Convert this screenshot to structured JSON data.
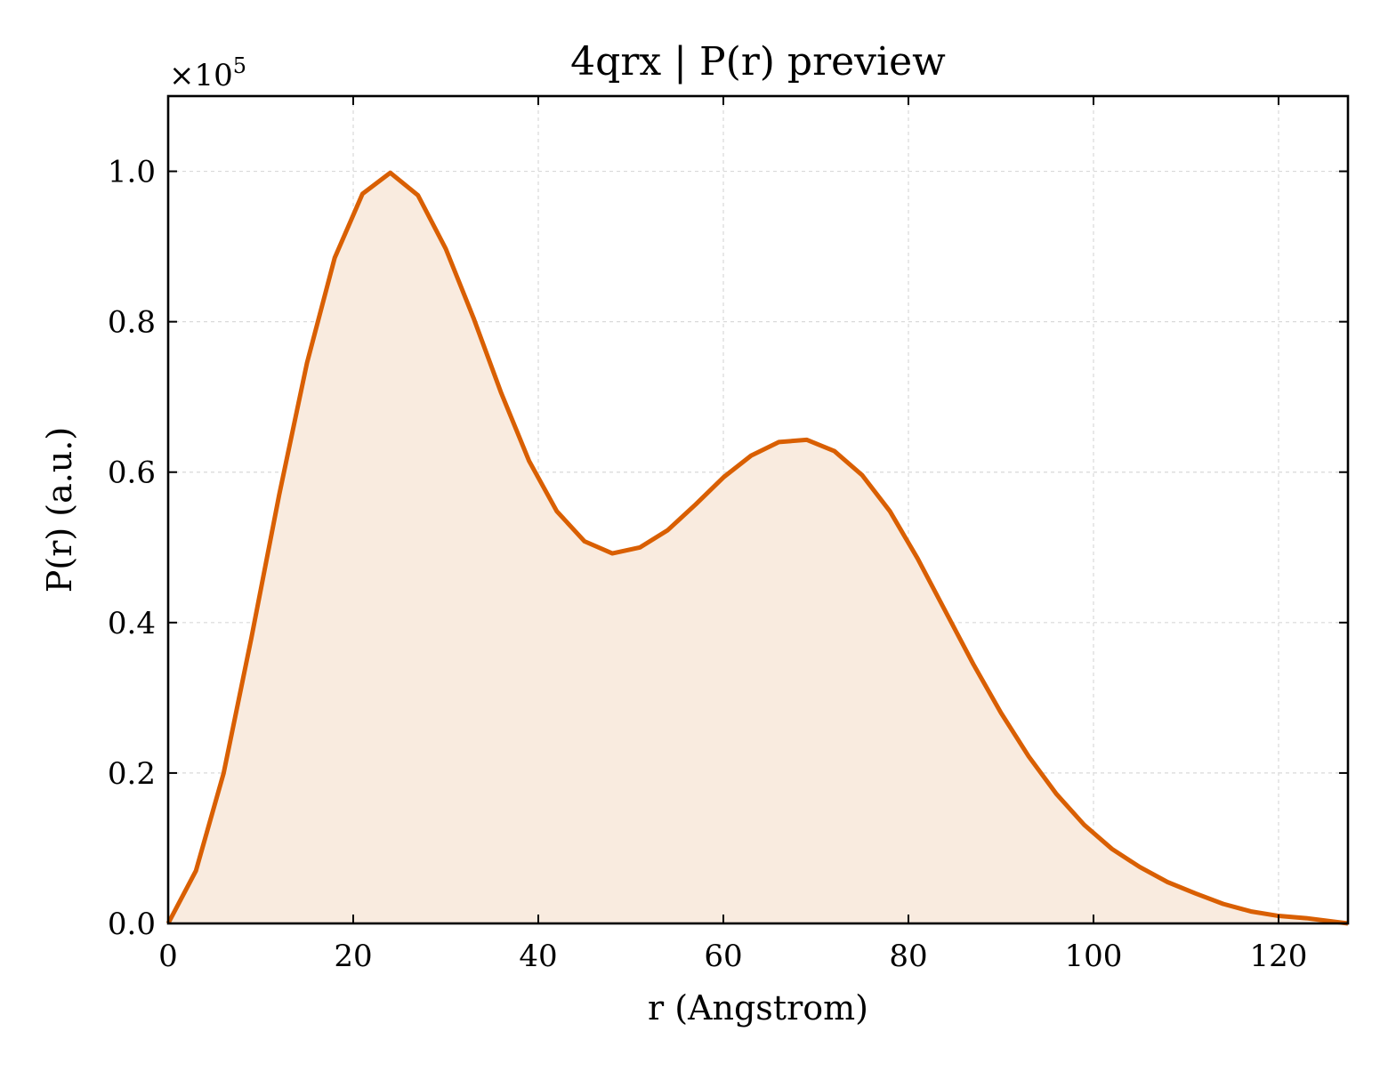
{
  "chart_data": {
    "type": "area",
    "title": "4qrx | P(r) preview",
    "xlabel": "r (Angstrom)",
    "ylabel": "P(r) (a.u.)",
    "y_multiplier": "×10",
    "y_multiplier_exponent": "5",
    "xlim": [
      0,
      127.5
    ],
    "ylim": [
      0,
      1.1
    ],
    "x_ticks": [
      0,
      20,
      40,
      60,
      80,
      100,
      120
    ],
    "x_tick_labels": [
      "0",
      "20",
      "40",
      "60",
      "80",
      "100",
      "120"
    ],
    "y_ticks": [
      0,
      0.2,
      0.4,
      0.6,
      0.8,
      1.0
    ],
    "y_tick_labels": [
      "0.0",
      "0.2",
      "0.4",
      "0.6",
      "0.8",
      "1.0"
    ],
    "grid": true,
    "line_color": "#d95f02",
    "fill_color": "#f9ebdf",
    "series": [
      {
        "x": [
          0,
          3,
          6,
          9,
          12,
          15,
          18,
          21,
          24,
          27,
          30,
          33,
          36,
          39,
          42,
          45,
          48,
          51,
          54,
          57,
          60,
          63,
          66,
          69,
          72,
          75,
          78,
          81,
          84,
          87,
          90,
          93,
          96,
          99,
          102,
          105,
          108,
          111,
          114,
          117,
          120,
          123,
          127.5
        ],
        "y": [
          0.0,
          0.07,
          0.2,
          0.38,
          0.57,
          0.745,
          0.885,
          0.97,
          0.998,
          0.968,
          0.897,
          0.805,
          0.705,
          0.615,
          0.548,
          0.508,
          0.492,
          0.5,
          0.523,
          0.557,
          0.593,
          0.622,
          0.64,
          0.643,
          0.628,
          0.596,
          0.548,
          0.485,
          0.415,
          0.345,
          0.28,
          0.222,
          0.172,
          0.131,
          0.099,
          0.075,
          0.055,
          0.04,
          0.026,
          0.016,
          0.01,
          0.007,
          0.0
        ]
      }
    ]
  }
}
